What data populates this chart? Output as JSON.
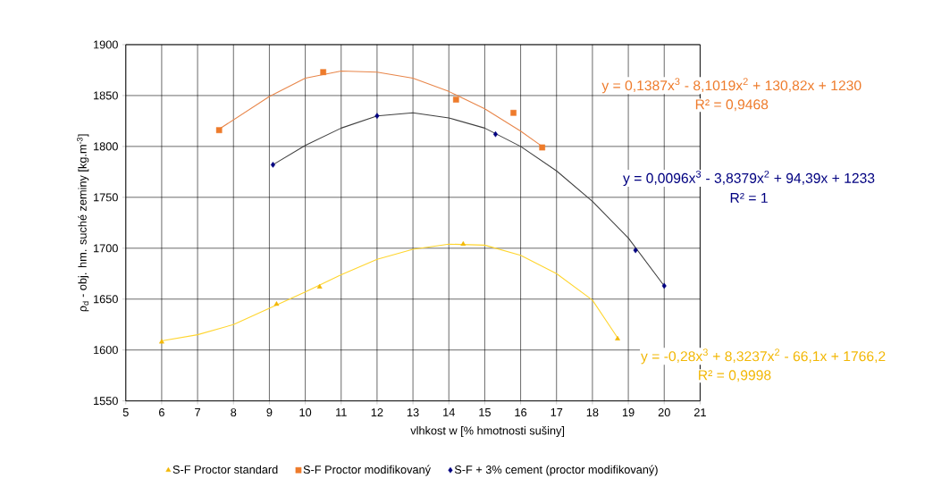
{
  "chart_data": {
    "type": "scatter",
    "xlabel": "vlhkost w [% hmotnosti sušiny]",
    "ylabel": "ρ$_{d}$ - obj. hm. suché zeminy [kg.m$^{-3}$]",
    "xlim": [
      5,
      21
    ],
    "ylim": [
      1550,
      1900
    ],
    "xticks": [
      5,
      6,
      7,
      8,
      9,
      10,
      11,
      12,
      13,
      14,
      15,
      16,
      17,
      18,
      19,
      20,
      21
    ],
    "yticks": [
      1550,
      1600,
      1650,
      1700,
      1750,
      1800,
      1850,
      1900
    ],
    "grid": true,
    "legend": "bottom",
    "series": [
      {
        "name": "S-F Proctor standard",
        "color": "#f2b705",
        "marker": "triangle",
        "x": [
          6,
          9.2,
          10.4,
          14.4,
          18.7
        ],
        "values": [
          1608,
          1645,
          1662,
          1704,
          1611
        ]
      },
      {
        "name": "S-F Proctor modifikovaný",
        "color": "#ee7b2b",
        "marker": "square",
        "x": [
          7.6,
          10.5,
          14.2,
          15.8,
          16.6
        ],
        "values": [
          1816,
          1873,
          1846,
          1833,
          1799
        ]
      },
      {
        "name": "S-F + 3% cement (proctor modifikovaný)",
        "color": "#000080",
        "marker": "diamond",
        "x": [
          9.1,
          12,
          15.3,
          19.2,
          20
        ],
        "values": [
          1782,
          1830,
          1812,
          1698,
          1663
        ]
      },
      {
        "type": "line",
        "color": "#ffd52e",
        "x": [
          6,
          7,
          8,
          9,
          10,
          11,
          12,
          13,
          14,
          15,
          16,
          17,
          18,
          18.7
        ],
        "values": [
          1609,
          1615,
          1625,
          1641,
          1657,
          1674,
          1689,
          1699,
          1704,
          1703,
          1693,
          1675,
          1649,
          1612
        ]
      },
      {
        "type": "line",
        "color": "#e8864a",
        "x": [
          7.6,
          9,
          10,
          11,
          12,
          13,
          14,
          15,
          16,
          16.6
        ],
        "values": [
          1817,
          1849,
          1867,
          1874,
          1873,
          1867,
          1854,
          1837,
          1815,
          1800
        ]
      },
      {
        "type": "line",
        "color": "#404040",
        "x": [
          9.1,
          10,
          11,
          12,
          13,
          14,
          15,
          16,
          17,
          18,
          19,
          20
        ],
        "values": [
          1782,
          1801,
          1818,
          1830,
          1833,
          1828,
          1818,
          1800,
          1776,
          1746,
          1710,
          1663
        ]
      }
    ],
    "annotations": [
      "y = 0,1387x$^{3}$ - 8,1019x$^{2}$ + 130,82x + 1230",
      "R² = 0,9468",
      "y = 0,0096x$^{3}$ - 3,8379x$^{2}$ + 94,39x + 1233",
      "R² = 1",
      "y = -0,28x$^{3}$ + 8,3237x$^{2}$ - 66,1x + 1766,2",
      "R² = 0,9998"
    ]
  }
}
